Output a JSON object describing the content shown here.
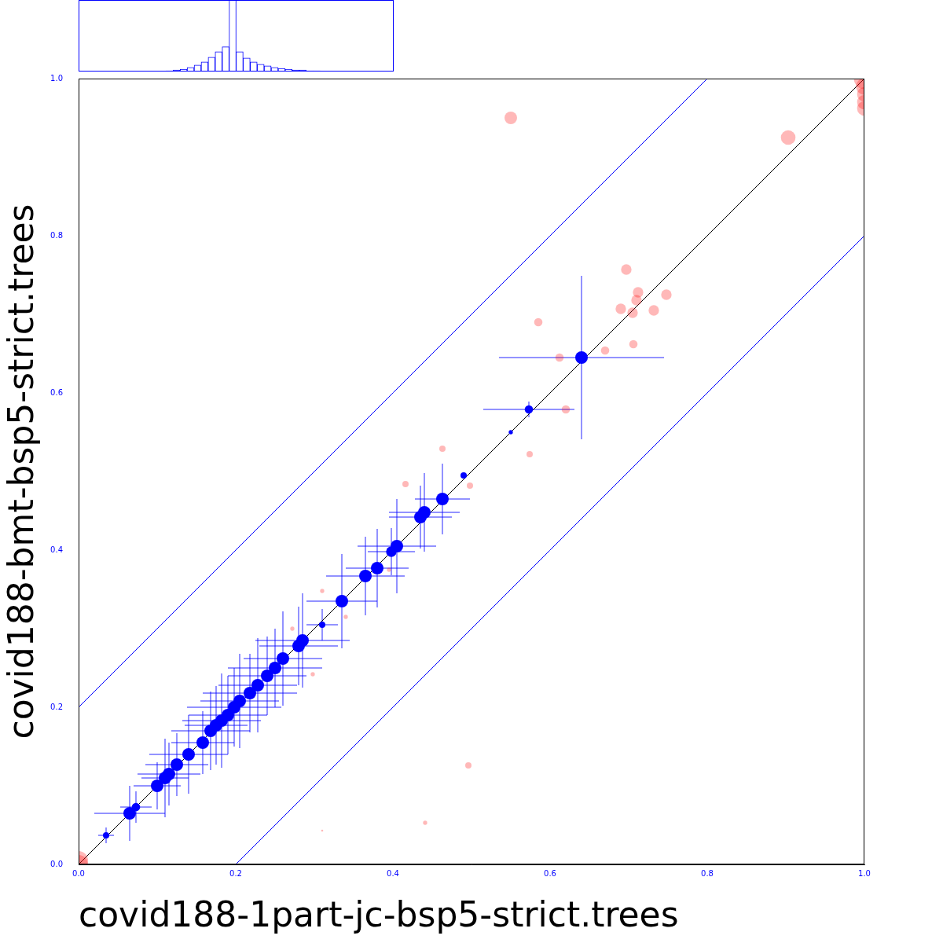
{
  "chart_data": [
    {
      "type": "scatter",
      "x_label": "covid188-1part-jc-bsp5-strict.trees",
      "y_label": "covid188-bmt-bsp5-strict.trees",
      "xlim": [
        0,
        1
      ],
      "ylim": [
        0,
        1
      ],
      "xticks": [
        {
          "value": 0,
          "label": "0.0"
        },
        0.2,
        0.4,
        0.6,
        0.8,
        {
          "value": 1,
          "label": "1.0"
        }
      ],
      "yticks": [
        {
          "value": 0,
          "label": "0.0"
        },
        0.2,
        0.4,
        0.6,
        0.8,
        {
          "value": 1,
          "label": "1.0"
        }
      ],
      "grid": false,
      "reference_lines": [
        {
          "offset": 0,
          "color": "#000000"
        },
        {
          "offset": 0.2,
          "color": "#0000ff"
        },
        {
          "offset": -0.2,
          "color": "#0000ff"
        }
      ],
      "series": [
        {
          "color": "#ff0000",
          "marker": "circle",
          "values": [
            [
              1,
              1
            ],
            [
              1,
              0.99
            ],
            [
              1,
              0.98
            ],
            [
              1,
              0.97
            ],
            [
              1,
              0.962
            ],
            [
              0.903,
              0.925
            ],
            [
              0.55,
              0.95
            ],
            [
              0.697,
              0.757
            ],
            [
              0.712,
              0.728
            ],
            [
              0.71,
              0.718
            ],
            [
              0.748,
              0.725
            ],
            [
              0.69,
              0.707
            ],
            [
              0.705,
              0.702
            ],
            [
              0.732,
              0.705
            ],
            [
              0.585,
              0.69
            ],
            [
              0.706,
              0.662
            ],
            [
              0.67,
              0.654
            ],
            [
              0.612,
              0.645
            ],
            [
              0.62,
              0.579
            ],
            [
              0.574,
              0.522
            ],
            [
              0.463,
              0.529
            ],
            [
              0.498,
              0.482
            ],
            [
              0.416,
              0.484
            ],
            [
              0.496,
              0.126
            ],
            [
              0.441,
              0.053
            ],
            [
              0.31,
              0.043
            ],
            [
              0,
              0.005
            ],
            [
              0,
              0
            ],
            [
              0.31,
              0.348
            ],
            [
              0.272,
              0.3
            ],
            [
              0.298,
              0.242
            ],
            [
              0.34,
              0.315
            ],
            [
              0.395,
              0.375
            ]
          ],
          "sizes": [
            10,
            8,
            7,
            7,
            7,
            7,
            6,
            5,
            5,
            5,
            5,
            5,
            5,
            5,
            4,
            4,
            4,
            4,
            4,
            3,
            3,
            3,
            3,
            3,
            2,
            1,
            9,
            9,
            2,
            2,
            2,
            2,
            2
          ]
        },
        {
          "color": "#0000ff",
          "marker": "circle",
          "values": [
            [
              0.64,
              0.645
            ],
            [
              0.573,
              0.579
            ],
            [
              0.55,
              0.55
            ],
            [
              0.49,
              0.495
            ],
            [
              0.463,
              0.465
            ],
            [
              0.44,
              0.448
            ],
            [
              0.435,
              0.442
            ],
            [
              0.405,
              0.405
            ],
            [
              0.398,
              0.398
            ],
            [
              0.38,
              0.377
            ],
            [
              0.365,
              0.367
            ],
            [
              0.335,
              0.335
            ],
            [
              0.31,
              0.305
            ],
            [
              0.285,
              0.285
            ],
            [
              0.28,
              0.278
            ],
            [
              0.26,
              0.262
            ],
            [
              0.25,
              0.25
            ],
            [
              0.24,
              0.24
            ],
            [
              0.228,
              0.228
            ],
            [
              0.218,
              0.218
            ],
            [
              0.205,
              0.208
            ],
            [
              0.198,
              0.2
            ],
            [
              0.19,
              0.19
            ],
            [
              0.182,
              0.183
            ],
            [
              0.175,
              0.177
            ],
            [
              0.168,
              0.17
            ],
            [
              0.158,
              0.155
            ],
            [
              0.14,
              0.14
            ],
            [
              0.125,
              0.127
            ],
            [
              0.115,
              0.115
            ],
            [
              0.11,
              0.11
            ],
            [
              0.1,
              0.1
            ],
            [
              0.073,
              0.073
            ],
            [
              0.065,
              0.065
            ],
            [
              0.035,
              0.037
            ]
          ],
          "sizes": [
            6,
            4,
            2,
            3,
            6,
            6,
            6,
            6,
            5,
            6,
            6,
            6,
            3,
            6,
            6,
            6,
            6,
            6,
            6,
            6,
            6,
            6,
            6,
            6,
            6,
            6,
            6,
            6,
            6,
            6,
            6,
            6,
            4,
            6,
            3
          ],
          "xerr": [
            0.105,
            0.058,
            0,
            0,
            0.035,
            0.045,
            0.04,
            0.05,
            0.03,
            0.04,
            0.05,
            0.045,
            0.02,
            0.06,
            0.05,
            0.05,
            0.06,
            0.05,
            0.05,
            0.06,
            0.05,
            0.06,
            0.05,
            0.05,
            0.04,
            0.05,
            0.04,
            0.05,
            0.04,
            0.04,
            0.03,
            0.03,
            0.02,
            0.045,
            0.01
          ],
          "yerr": [
            0.104,
            0.01,
            0,
            0,
            0.045,
            0.05,
            0.04,
            0.06,
            0.03,
            0.05,
            0.05,
            0.06,
            0.02,
            0.06,
            0.05,
            0.06,
            0.05,
            0.05,
            0.06,
            0.05,
            0.06,
            0.05,
            0.05,
            0.06,
            0.05,
            0.05,
            0.04,
            0.05,
            0.04,
            0.04,
            0.05,
            0.03,
            0.02,
            0.035,
            0.01
          ]
        }
      ]
    },
    {
      "type": "histogram",
      "color": "#0000ff",
      "tick_labels": false,
      "ylim": [
        0,
        90
      ],
      "bins": [
        -0.2,
        -0.19,
        -0.18,
        -0.17,
        -0.16,
        -0.15,
        -0.14,
        -0.13,
        -0.12,
        -0.11,
        -0.1,
        -0.09,
        -0.08,
        -0.07,
        -0.06,
        -0.05,
        -0.04,
        -0.03,
        -0.02,
        -0.01,
        0,
        0.01,
        0.02,
        0.03,
        0.04,
        0.05,
        0.06,
        0.07,
        0.08,
        0.09,
        0.1,
        0.11,
        0.12,
        0.13,
        0.14,
        0.15,
        0.16,
        0.17,
        0.18,
        0.19,
        0.2
      ],
      "counts": [
        0,
        0,
        0,
        0,
        0,
        0,
        0,
        0,
        0,
        0,
        1,
        2,
        3,
        5,
        8,
        12,
        18,
        25,
        31,
        90,
        25,
        17,
        12,
        9,
        7,
        5,
        4,
        3,
        2,
        2,
        1,
        1,
        0,
        0,
        0,
        0,
        0,
        0,
        0,
        0
      ]
    }
  ]
}
